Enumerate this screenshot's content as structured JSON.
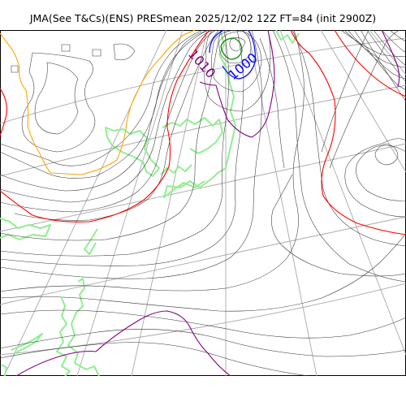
{
  "title": "JMA(See T&Cs)(ENS) PRESmean 2025/12/02 12Z FT=84 (init 2900Z)",
  "labels": {
    "isobar_1010": "1010",
    "isobar_1000": "1000"
  },
  "colors": {
    "isobar": "#333333",
    "isobar_1016": "#ff0000",
    "isobar_1020": "#800080",
    "isobar_1012": "#ffa500",
    "isobar_1000": "#0000ff",
    "isobar_996": "#008000",
    "coastline": "#90ee90",
    "graticule": "#a8a8a8"
  }
}
